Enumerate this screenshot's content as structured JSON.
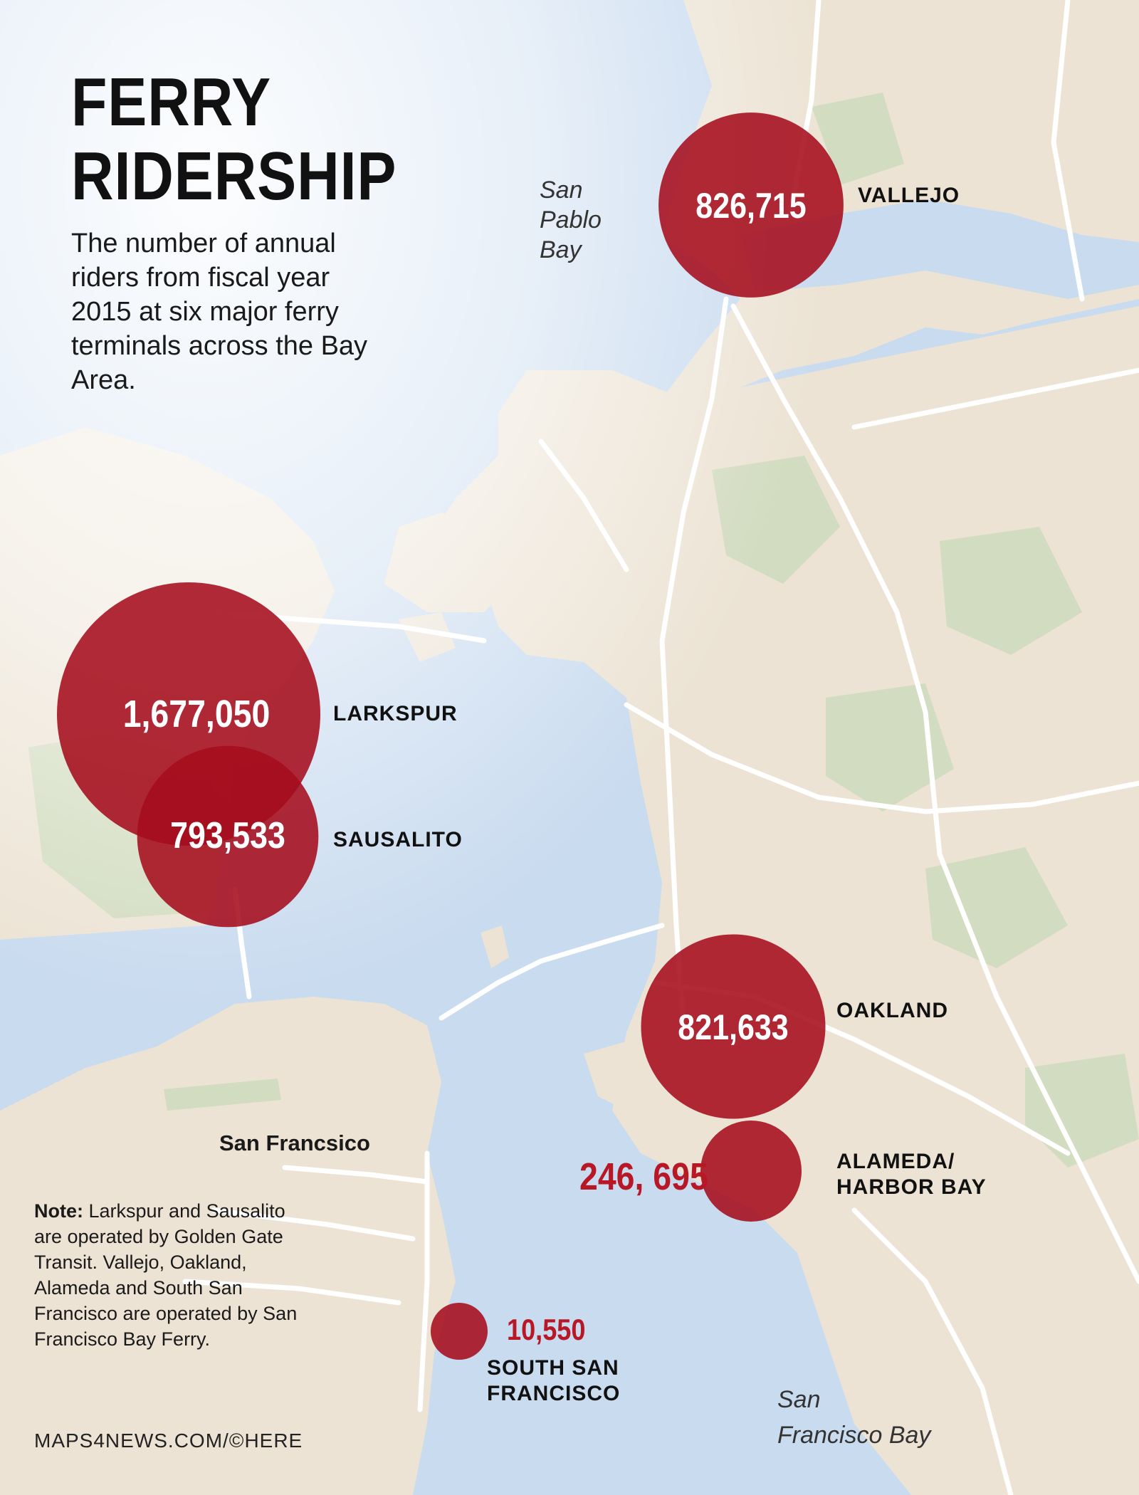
{
  "title_line1": "FERRY",
  "title_line2": "RIDERSHIP",
  "subtitle": "The number of annual riders  from fiscal year 2015 at six major ferry terminals across the Bay Area.",
  "water_labels": {
    "san_pablo_bay": "San\nPablo\nBay",
    "sf_bay_1": "San",
    "sf_bay_2": "Francisco Bay"
  },
  "place_labels": {
    "san_francisco": "San Francsico"
  },
  "terminals": [
    {
      "name": "VALLEJO",
      "riders": 826715,
      "display": "826,715"
    },
    {
      "name": "LARKSPUR",
      "riders": 1677050,
      "display": "1,677,050"
    },
    {
      "name": "SAUSALITO",
      "riders": 793533,
      "display": "793,533"
    },
    {
      "name": "OAKLAND",
      "riders": 821633,
      "display": "821,633"
    },
    {
      "name_line1": "ALAMEDA/",
      "name_line2": "HARBOR BAY",
      "riders": 246695,
      "display": "246, 695"
    },
    {
      "name_line1": "SOUTH SAN",
      "name_line2": "FRANCISCO",
      "riders": 10550,
      "display": "10,550"
    }
  ],
  "note_label": "Note:",
  "note_text": " Larkspur and Sausalito are operated by Golden Gate Transit. Vallejo, Oakland, Alameda and South San Francisco are operated by San Francisco Bay Ferry.",
  "credit": "MAPS4NEWS.COM/©HERE",
  "colors": {
    "water": "#c9dbef",
    "land": "#ece3d4",
    "park": "#d2dcc0",
    "road": "#ffffff",
    "bubble": "#a50d1c",
    "value_outside": "#b81826"
  }
}
